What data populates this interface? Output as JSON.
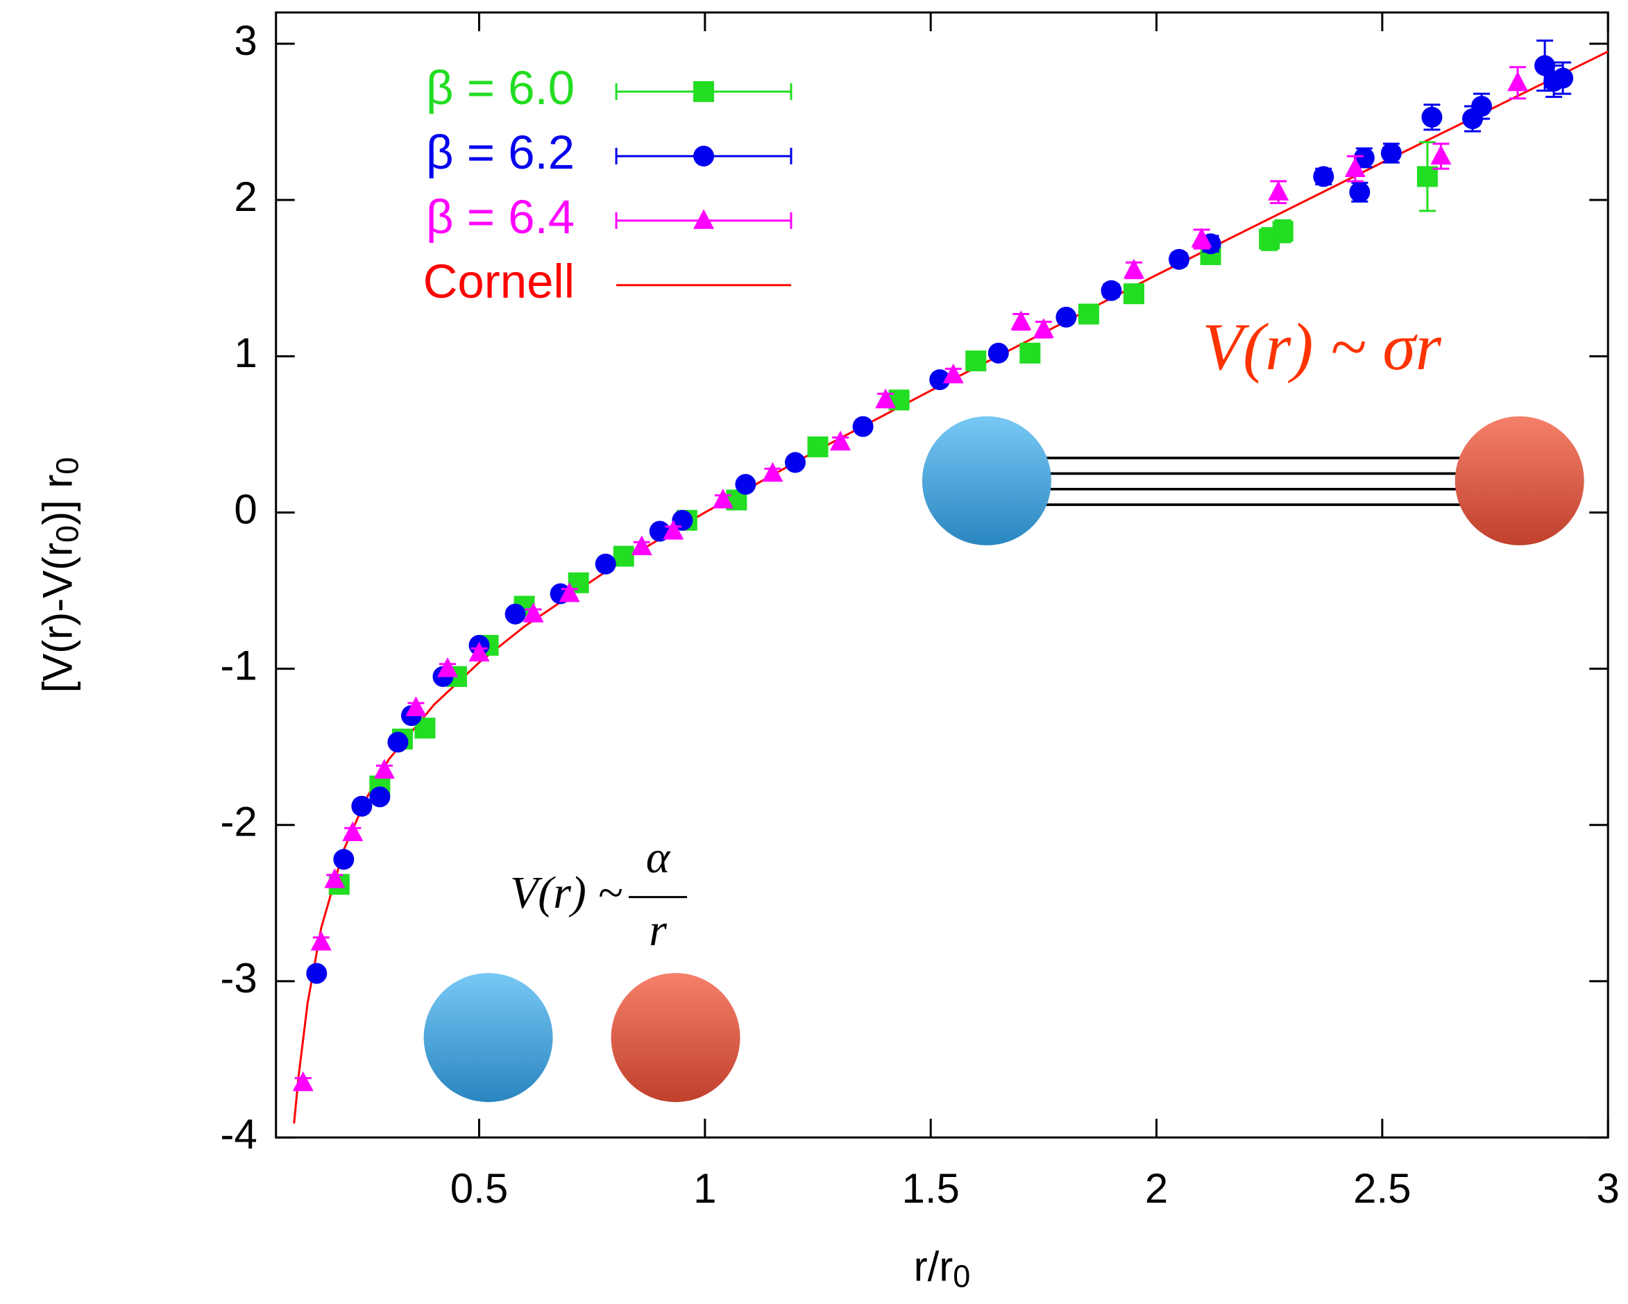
{
  "chart_data": {
    "type": "scatter",
    "ylabel": [
      "[V(r)-V(r",
      "0",
      ")] r",
      "0"
    ],
    "xlabel": [
      "r/r",
      "0"
    ],
    "xlim": [
      0.05,
      3
    ],
    "ylim": [
      -4,
      3.2
    ],
    "xticks": [
      0.5,
      1,
      1.5,
      2,
      2.5,
      3
    ],
    "yticks": [
      -4,
      -3,
      -2,
      -1,
      0,
      1,
      2,
      3
    ],
    "legend": "upper left",
    "annotations": {
      "linear": "V(r) ~ σr",
      "coulomb": "V(r) ~",
      "coulomb_num": "α",
      "coulomb_den": "r"
    },
    "series": [
      {
        "name": "β = 6.0",
        "color": "#22dd22",
        "marker": "square",
        "x": [
          0.19,
          0.28,
          0.33,
          0.38,
          0.45,
          0.52,
          0.6,
          0.72,
          0.82,
          0.96,
          1.07,
          1.25,
          1.43,
          1.6,
          1.72,
          1.85,
          1.95,
          2.12,
          2.25,
          2.28,
          2.6
        ],
        "values": [
          -2.38,
          -1.75,
          -1.45,
          -1.38,
          -1.05,
          -0.85,
          -0.6,
          -0.45,
          -0.28,
          -0.05,
          0.08,
          0.42,
          0.72,
          0.97,
          1.02,
          1.27,
          1.4,
          1.65,
          1.75,
          1.8,
          2.15
        ],
        "errors": [
          0.03,
          0.03,
          0.03,
          0.03,
          0.03,
          0.03,
          0.03,
          0.03,
          0.03,
          0.03,
          0.03,
          0.03,
          0.03,
          0.03,
          0.04,
          0.04,
          0.04,
          0.05,
          0.07,
          0.07,
          0.22
        ]
      },
      {
        "name": "β = 6.2",
        "color": "#0000ee",
        "marker": "circle",
        "x": [
          0.14,
          0.2,
          0.24,
          0.28,
          0.32,
          0.35,
          0.42,
          0.5,
          0.58,
          0.68,
          0.78,
          0.9,
          0.95,
          1.09,
          1.2,
          1.35,
          1.52,
          1.65,
          1.8,
          1.9,
          2.05,
          2.12,
          2.37,
          2.45,
          2.46,
          2.52,
          2.61,
          2.7,
          2.72,
          2.86,
          2.88,
          2.9
        ],
        "values": [
          -2.95,
          -2.22,
          -1.88,
          -1.82,
          -1.47,
          -1.3,
          -1.05,
          -0.85,
          -0.65,
          -0.52,
          -0.33,
          -0.12,
          -0.05,
          0.18,
          0.32,
          0.55,
          0.85,
          1.02,
          1.25,
          1.42,
          1.62,
          1.72,
          2.15,
          2.05,
          2.27,
          2.3,
          2.53,
          2.52,
          2.6,
          2.86,
          2.76,
          2.78
        ],
        "errors": [
          0.03,
          0.03,
          0.03,
          0.03,
          0.03,
          0.03,
          0.03,
          0.03,
          0.03,
          0.03,
          0.03,
          0.03,
          0.03,
          0.03,
          0.03,
          0.03,
          0.03,
          0.03,
          0.03,
          0.04,
          0.04,
          0.05,
          0.05,
          0.06,
          0.06,
          0.06,
          0.08,
          0.08,
          0.08,
          0.16,
          0.1,
          0.1
        ]
      },
      {
        "name": "β = 6.4",
        "color": "#ff00ff",
        "marker": "triangle",
        "x": [
          0.11,
          0.15,
          0.18,
          0.22,
          0.29,
          0.36,
          0.43,
          0.5,
          0.62,
          0.7,
          0.86,
          0.93,
          1.04,
          1.15,
          1.3,
          1.4,
          1.55,
          1.7,
          1.75,
          1.95,
          2.1,
          2.27,
          2.44,
          2.63,
          2.8
        ],
        "values": [
          -3.65,
          -2.75,
          -2.35,
          -2.05,
          -1.65,
          -1.25,
          -1.0,
          -0.9,
          -0.65,
          -0.52,
          -0.22,
          -0.12,
          0.08,
          0.25,
          0.45,
          0.72,
          0.88,
          1.22,
          1.17,
          1.55,
          1.75,
          2.05,
          2.2,
          2.28,
          2.75
        ],
        "errors": [
          0.03,
          0.03,
          0.03,
          0.03,
          0.03,
          0.03,
          0.03,
          0.03,
          0.03,
          0.03,
          0.03,
          0.03,
          0.03,
          0.03,
          0.03,
          0.04,
          0.04,
          0.05,
          0.05,
          0.05,
          0.06,
          0.07,
          0.08,
          0.08,
          0.1
        ]
      },
      {
        "name": "Cornell",
        "color": "#ff0000",
        "type": "line",
        "x": [
          0.09,
          0.1,
          0.12,
          0.15,
          0.2,
          0.25,
          0.3,
          0.4,
          0.5,
          0.6,
          0.8,
          1,
          1.25,
          1.5,
          2,
          2.5,
          3
        ],
        "values": [
          -3.91,
          -3.61,
          -3.14,
          -2.66,
          -2.16,
          -1.83,
          -1.58,
          -1.23,
          -0.96,
          -0.73,
          -0.34,
          0,
          0.4,
          0.78,
          1.52,
          2.24,
          2.95
        ]
      }
    ]
  }
}
